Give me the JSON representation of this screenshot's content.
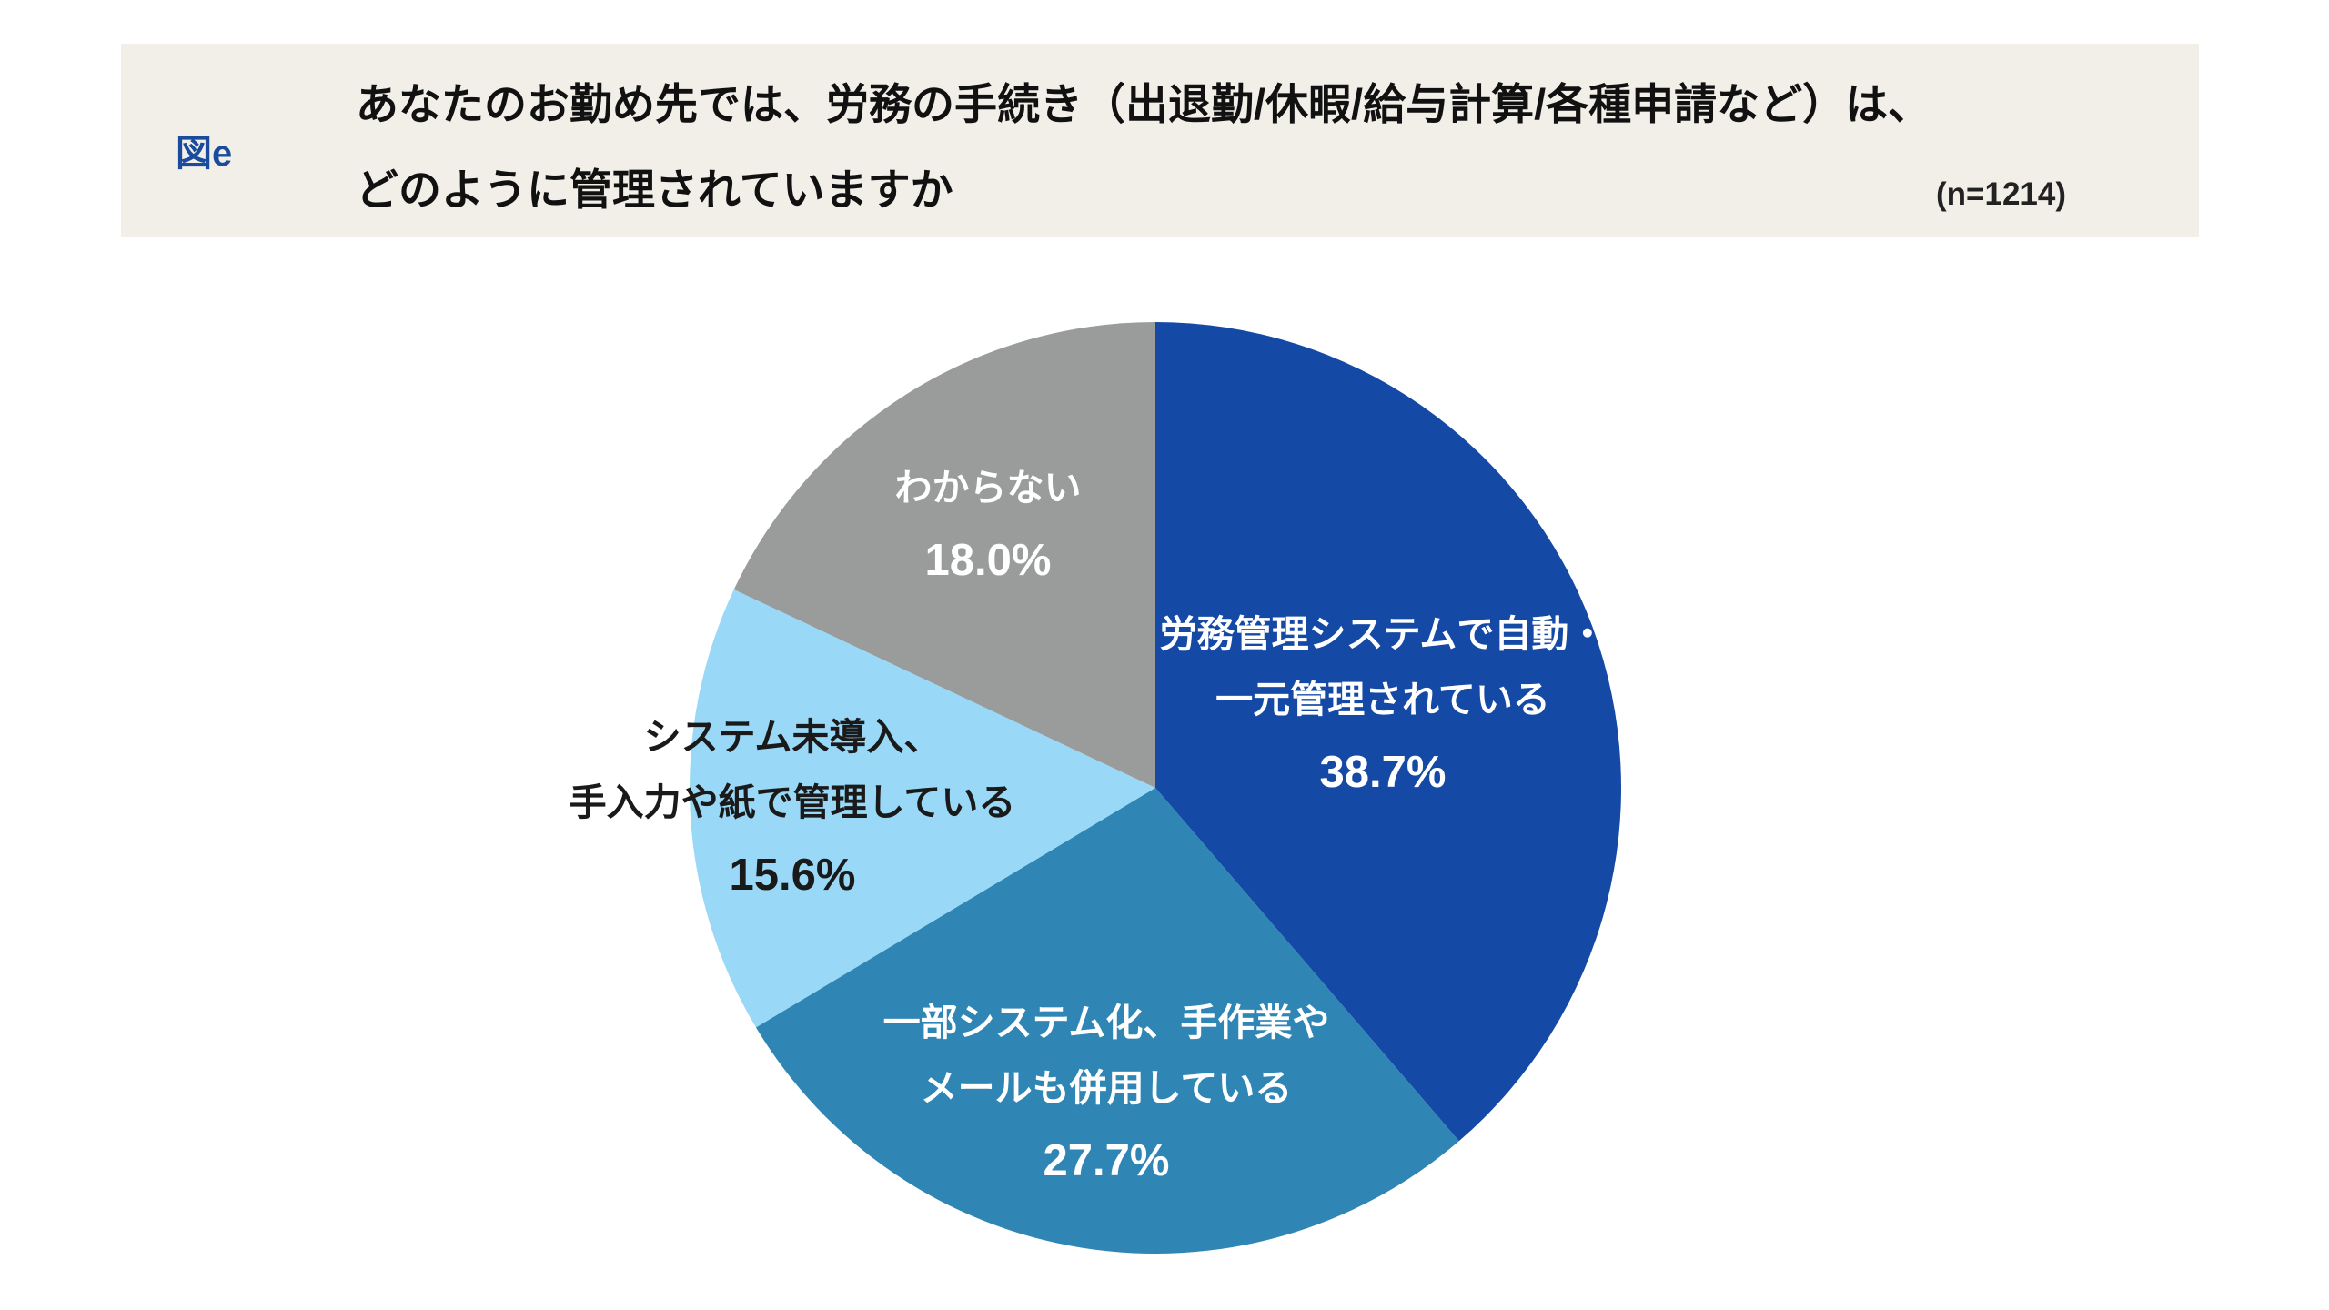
{
  "header": {
    "figure_label": "図e",
    "figure_label_color": "#1B4B9C",
    "background": "#F2EFE8",
    "title_line1": "あなたのお勤め先では、労務の手続き（出退勤/休暇/給与計算/各種申請など）は、",
    "title_line2": "どのように管理されていますか",
    "sample_size": "(n=1214)"
  },
  "chart_data": {
    "type": "pie",
    "title": "あなたのお勤め先では、労務の手続き（出退勤/休暇/給与計算/各種申請など）は、どのように管理されていますか",
    "sample_n": 1214,
    "start_angle_deg": 0,
    "direction": "clockwise",
    "legend_position": "inside-labels",
    "slices": [
      {
        "label": "労務管理システムで自動・一元管理されている",
        "label_lines": [
          "労務管理システムで自動・",
          "一元管理されている"
        ],
        "value": 38.7,
        "display": "38.7%",
        "color": "#1449A5",
        "text_color": "#FFFFFF"
      },
      {
        "label": "一部システム化、手作業やメールも併用している",
        "label_lines": [
          "一部システム化、手作業や",
          "メールも併用している"
        ],
        "value": 27.7,
        "display": "27.7%",
        "color": "#2F86B4",
        "text_color": "#FFFFFF"
      },
      {
        "label": "システム未導入、手入力や紙で管理している",
        "label_lines": [
          "システム未導入、",
          "手入力や紙で管理している"
        ],
        "value": 15.6,
        "display": "15.6%",
        "color": "#99D9F7",
        "text_color": "#1A1A1A"
      },
      {
        "label": "わからない",
        "label_lines": [
          "わからない"
        ],
        "value": 18.0,
        "display": "18.0%",
        "color": "#9A9B9B",
        "text_color": "#FFFFFF"
      }
    ]
  }
}
